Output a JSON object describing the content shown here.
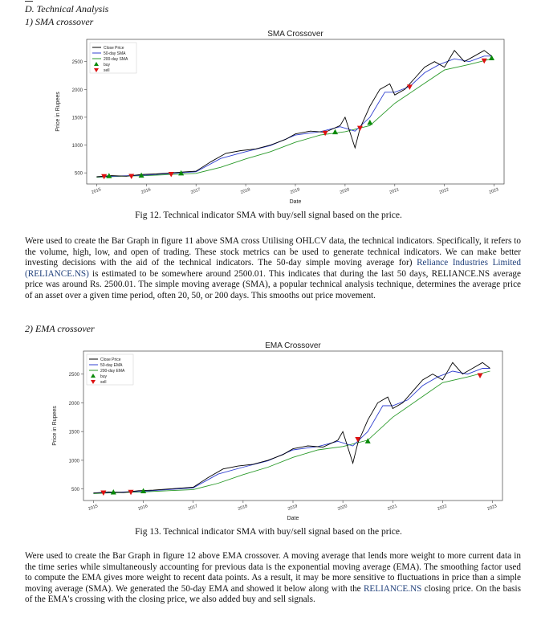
{
  "section": {
    "heading": "D.   Technical Analysis",
    "sub1": "1)   SMA crossover",
    "sub2": "2)   EMA crossover"
  },
  "charts": [
    {
      "key": "sma",
      "title": "SMA Crossover",
      "legend": [
        "Close Price",
        "50-day SMA",
        "200-day SMA",
        "buy",
        "sell"
      ],
      "xlabel": "Date",
      "ylabel": "Price in Rupees",
      "xticks": [
        "2015",
        "2016",
        "2017",
        "2018",
        "2019",
        "2020",
        "2021",
        "2022",
        "2023"
      ],
      "yticks": [
        "500",
        "1000",
        "1500",
        "2000",
        "2500"
      ]
    },
    {
      "key": "ema",
      "title": "EMA Crossover",
      "legend": [
        "Close Price",
        "50-day EMA",
        "200-day EMA",
        "buy",
        "sell"
      ],
      "xlabel": "Date",
      "ylabel": "Price in Rupees",
      "xticks": [
        "2015",
        "2016",
        "2017",
        "2018",
        "2019",
        "2020",
        "2021",
        "2022",
        "2023"
      ],
      "yticks": [
        "500",
        "1000",
        "1500",
        "2000",
        "2500"
      ]
    }
  ],
  "chart_data": [
    {
      "type": "line",
      "title": "SMA Crossover",
      "xlabel": "Date",
      "ylabel": "Price in Rupees",
      "ylim": [
        300,
        2900
      ],
      "xlim": [
        2014.8,
        2023.2
      ],
      "series": [
        {
          "name": "Close Price",
          "color": "#000000",
          "x": [
            2015.0,
            2015.3,
            2015.6,
            2015.9,
            2016.2,
            2016.5,
            2016.8,
            2017.0,
            2017.3,
            2017.6,
            2017.9,
            2018.2,
            2018.5,
            2018.8,
            2019.0,
            2019.3,
            2019.6,
            2019.9,
            2020.0,
            2020.2,
            2020.3,
            2020.5,
            2020.7,
            2020.9,
            2021.0,
            2021.2,
            2021.4,
            2021.6,
            2021.8,
            2022.0,
            2022.2,
            2022.4,
            2022.6,
            2022.8,
            2022.95
          ],
          "values": [
            430,
            450,
            440,
            470,
            480,
            500,
            520,
            530,
            700,
            850,
            900,
            930,
            1000,
            1100,
            1200,
            1250,
            1230,
            1350,
            1500,
            950,
            1300,
            1700,
            2000,
            2100,
            1900,
            2000,
            2200,
            2400,
            2500,
            2400,
            2700,
            2500,
            2600,
            2700,
            2600
          ]
        },
        {
          "name": "50-day SMA",
          "color": "#3040d0",
          "x": [
            2015.0,
            2015.5,
            2016.0,
            2016.5,
            2017.0,
            2017.5,
            2018.0,
            2018.5,
            2019.0,
            2019.5,
            2019.9,
            2020.2,
            2020.5,
            2020.8,
            2021.0,
            2021.3,
            2021.6,
            2021.9,
            2022.2,
            2022.5,
            2022.8,
            2022.95
          ],
          "values": [
            430,
            445,
            460,
            490,
            520,
            760,
            880,
            990,
            1180,
            1240,
            1330,
            1250,
            1500,
            1950,
            1950,
            2050,
            2300,
            2450,
            2550,
            2500,
            2600,
            2600
          ]
        },
        {
          "name": "200-day SMA",
          "color": "#2a9a2a",
          "x": [
            2015.0,
            2015.5,
            2016.0,
            2016.5,
            2017.0,
            2017.5,
            2018.0,
            2018.5,
            2019.0,
            2019.5,
            2020.0,
            2020.5,
            2021.0,
            2021.5,
            2022.0,
            2022.5,
            2022.95
          ],
          "values": [
            420,
            440,
            450,
            470,
            490,
            600,
            750,
            880,
            1050,
            1180,
            1240,
            1350,
            1750,
            2050,
            2350,
            2450,
            2550
          ]
        }
      ],
      "buy": [
        [
          2015.25,
          440
        ],
        [
          2015.9,
          450
        ],
        [
          2016.7,
          490
        ],
        [
          2019.8,
          1230
        ],
        [
          2020.5,
          1400
        ],
        [
          2022.95,
          2560
        ]
      ],
      "sell": [
        [
          2015.15,
          440
        ],
        [
          2015.7,
          445
        ],
        [
          2016.5,
          480
        ],
        [
          2019.6,
          1220
        ],
        [
          2020.3,
          1310
        ],
        [
          2021.3,
          2050
        ],
        [
          2022.8,
          2520
        ]
      ]
    },
    {
      "type": "line",
      "title": "EMA Crossover",
      "xlabel": "Date",
      "ylabel": "Price in Rupees",
      "ylim": [
        300,
        2900
      ],
      "xlim": [
        2014.8,
        2023.2
      ],
      "series": [
        {
          "name": "Close Price",
          "color": "#000000",
          "x": [
            2015.0,
            2015.3,
            2015.6,
            2015.9,
            2016.2,
            2016.5,
            2016.8,
            2017.0,
            2017.3,
            2017.6,
            2017.9,
            2018.2,
            2018.5,
            2018.8,
            2019.0,
            2019.3,
            2019.6,
            2019.9,
            2020.0,
            2020.2,
            2020.3,
            2020.5,
            2020.7,
            2020.9,
            2021.0,
            2021.2,
            2021.4,
            2021.6,
            2021.8,
            2022.0,
            2022.2,
            2022.4,
            2022.6,
            2022.8,
            2022.95
          ],
          "values": [
            430,
            450,
            440,
            470,
            480,
            500,
            520,
            530,
            700,
            850,
            900,
            930,
            1000,
            1100,
            1200,
            1250,
            1230,
            1350,
            1500,
            950,
            1300,
            1700,
            2000,
            2100,
            1900,
            2000,
            2200,
            2400,
            2500,
            2400,
            2700,
            2500,
            2600,
            2700,
            2600
          ]
        },
        {
          "name": "50-day EMA",
          "color": "#3040d0",
          "x": [
            2015.0,
            2015.5,
            2016.0,
            2016.5,
            2017.0,
            2017.5,
            2018.0,
            2018.5,
            2019.0,
            2019.5,
            2019.9,
            2020.2,
            2020.5,
            2020.8,
            2021.0,
            2021.3,
            2021.6,
            2021.9,
            2022.2,
            2022.5,
            2022.8,
            2022.95
          ],
          "values": [
            430,
            445,
            460,
            490,
            520,
            760,
            880,
            990,
            1180,
            1240,
            1330,
            1250,
            1500,
            1950,
            1950,
            2050,
            2300,
            2450,
            2550,
            2500,
            2600,
            2600
          ]
        },
        {
          "name": "200-day EMA",
          "color": "#2a9a2a",
          "x": [
            2015.0,
            2015.5,
            2016.0,
            2016.5,
            2017.0,
            2017.5,
            2018.0,
            2018.5,
            2019.0,
            2019.5,
            2020.0,
            2020.5,
            2021.0,
            2021.5,
            2022.0,
            2022.5,
            2022.95
          ],
          "values": [
            420,
            440,
            450,
            470,
            490,
            600,
            750,
            880,
            1050,
            1180,
            1240,
            1350,
            1750,
            2050,
            2350,
            2450,
            2550
          ]
        }
      ],
      "buy": [
        [
          2015.4,
          440
        ],
        [
          2016.0,
          460
        ],
        [
          2020.5,
          1330
        ]
      ],
      "sell": [
        [
          2015.2,
          440
        ],
        [
          2015.75,
          450
        ],
        [
          2020.3,
          1370
        ],
        [
          2022.75,
          2480
        ]
      ]
    }
  ],
  "captions": {
    "fig12": "Fig 12. Technical indicator SMA with buy/sell signal based on the price.",
    "fig13": "Fig 13. Technical indicator SMA with buy/sell signal based on the price."
  },
  "paragraph1": {
    "p1": "Were used to create the Bar Graph in figure 11 above SMA cross Utilising OHLCV data, the technical indicators. Specifically, it refers to the volume, high, low, and open of trading. These stock metrics can be used to generate technical indicators. We can make better investing decisions with the aid of the technical indicators. The 50-day simple moving average for) ",
    "link": "Reliance Industries Limited (RELIANCE.NS)",
    "p2": " is estimated to be somewhere around 2500.01. This indicates that during the last 50 days, RELIANCE.NS average price was around Rs. 2500.01. The simple moving average (SMA), a popular technical analysis technique, determines the average price of an asset over a given time period, often 20, 50, or 200 days. This smooths out price movement."
  },
  "paragraph2": {
    "p1": "Were used to create the Bar Graph in figure 12 above EMA crossover. A moving average that lends more weight to more current data in the time series while simultaneously accounting for previous data is the exponential moving average (EMA). The smoothing factor used to compute the EMA gives more weight to recent data points. As a result, it may be more sensitive to fluctuations in price than a simple moving average (SMA). We generated the 50-day EMA and showed it below along with the ",
    "link": "RELIANCE.NS",
    "p2": " closing price. On the basis of the EMA's crossing with the closing price, we also added buy and sell signals."
  }
}
